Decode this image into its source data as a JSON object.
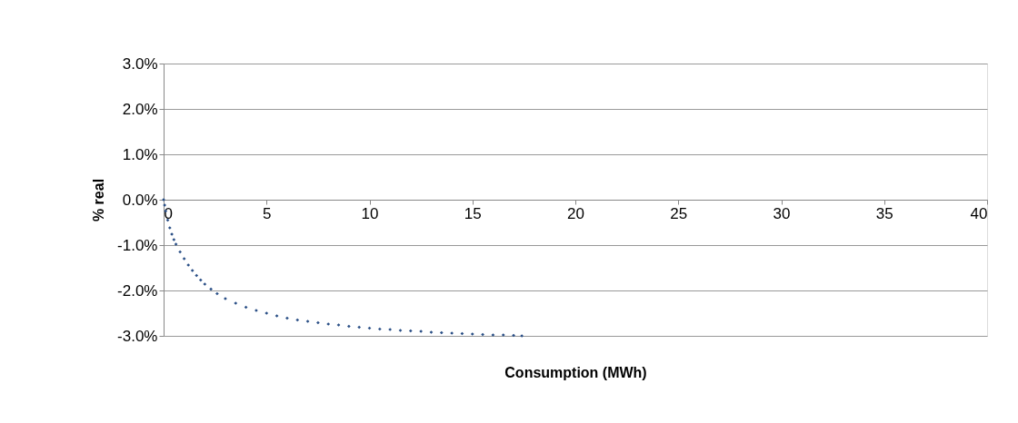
{
  "chart_data": {
    "type": "scatter",
    "xlabel": "Consumption (MWh)",
    "ylabel": "% real",
    "x": [
      0,
      0.05,
      0.1,
      0.2,
      0.3,
      0.4,
      0.5,
      0.6,
      0.8,
      1.0,
      1.2,
      1.4,
      1.6,
      1.8,
      2.0,
      2.3,
      2.6,
      3.0,
      3.5,
      4.0,
      4.5,
      5.0,
      5.5,
      6,
      6.5,
      7,
      7.5,
      8,
      8.5,
      9,
      9.5,
      10,
      10.5,
      11,
      11.5,
      12,
      12.5,
      13,
      13.5,
      14,
      14.5,
      15,
      15.5,
      16,
      16.5,
      17,
      17.4
    ],
    "series": [
      {
        "color": "#2a4f86",
        "values": [
          0,
          -0.12,
          -0.25,
          -0.45,
          -0.62,
          -0.76,
          -0.88,
          -0.98,
          -1.15,
          -1.3,
          -1.44,
          -1.56,
          -1.67,
          -1.77,
          -1.86,
          -1.97,
          -2.07,
          -2.18,
          -2.28,
          -2.37,
          -2.44,
          -2.5,
          -2.56,
          -2.61,
          -2.65,
          -2.68,
          -2.71,
          -2.74,
          -2.76,
          -2.79,
          -2.81,
          -2.83,
          -2.85,
          -2.86,
          -2.88,
          -2.89,
          -2.9,
          -2.92,
          -2.93,
          -2.94,
          -2.95,
          -2.96,
          -2.97,
          -2.98,
          -2.98,
          -2.99,
          -3.0
        ]
      }
    ],
    "xlim": [
      0,
      40
    ],
    "xticks": [
      0,
      5,
      10,
      15,
      20,
      25,
      30,
      35,
      40
    ],
    "ylim": [
      -3,
      3
    ],
    "yticks": [
      {
        "value": -3,
        "label": "-3.0%"
      },
      {
        "value": -2,
        "label": "-2.0%"
      },
      {
        "value": -1,
        "label": "-1.0%"
      },
      {
        "value": 0,
        "label": "0.0%"
      },
      {
        "value": 1,
        "label": "1.0%"
      },
      {
        "value": 2,
        "label": "2.0%"
      },
      {
        "value": 3,
        "label": "3.0%"
      }
    ],
    "grid": "y",
    "legend": false,
    "marker": "diamond"
  }
}
